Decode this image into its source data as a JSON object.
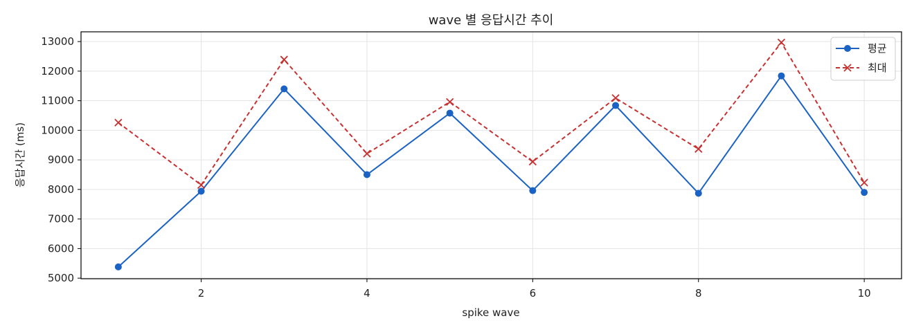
{
  "chart_data": {
    "type": "line",
    "title": "wave 별 응답시간 추이",
    "xlabel": "spike wave",
    "ylabel": "응답시간 (ms)",
    "x": [
      1,
      2,
      3,
      4,
      5,
      6,
      7,
      8,
      9,
      10
    ],
    "x_ticks": [
      2,
      4,
      6,
      8,
      10
    ],
    "y_ticks": [
      5000,
      6000,
      7000,
      8000,
      9000,
      10000,
      11000,
      12000,
      13000
    ],
    "xlim": [
      0.55,
      10.45
    ],
    "ylim": [
      4980,
      13330
    ],
    "grid": true,
    "legend_position": "top-right",
    "series": [
      {
        "name": "평균",
        "values": [
          5380,
          7940,
          11400,
          8500,
          10580,
          7960,
          10840,
          7870,
          11840,
          7900
        ],
        "color": "#1a62c4",
        "line_style": "solid",
        "marker": "circle"
      },
      {
        "name": "최대",
        "values": [
          10260,
          8150,
          12390,
          9210,
          10960,
          8940,
          11090,
          9370,
          12970,
          8230
        ],
        "color": "#c8302f",
        "line_style": "dashed",
        "marker": "x"
      }
    ]
  }
}
